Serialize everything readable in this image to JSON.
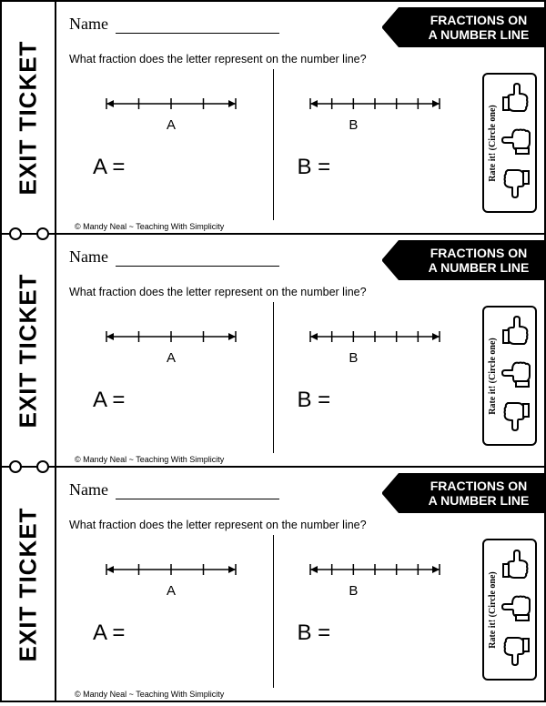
{
  "worksheet": {
    "stub_label": "EXIT TICKET",
    "name_label": "Name",
    "banner_line1": "FRACTIONS ON",
    "banner_line2": "A NUMBER LINE",
    "question": "What fraction does the letter represent on the number line?",
    "problem_a": {
      "letter": "A",
      "answer_prompt": "A =",
      "ticks": 5,
      "label_at_tick": 2
    },
    "problem_b": {
      "letter": "B",
      "answer_prompt": "B =",
      "ticks": 7,
      "label_at_tick": 2
    },
    "rate_label": "Rate it! (Circle one)",
    "copyright": "© Mandy Neal ~ Teaching With Simplicity"
  }
}
